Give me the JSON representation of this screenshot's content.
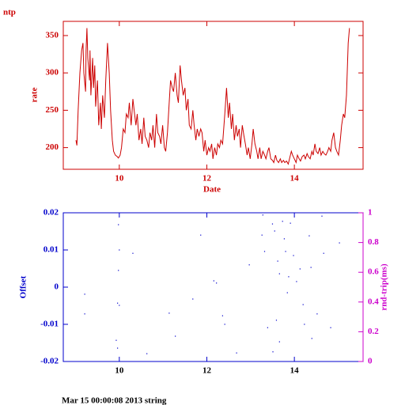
{
  "chart_data": [
    {
      "type": "line",
      "title": "ntp",
      "xlabel": "Date",
      "ylabel": "rate",
      "color": "#cc0000",
      "xlim": [
        8.72,
        15.57
      ],
      "xticks": [
        10,
        12,
        14
      ],
      "ylim": [
        171,
        369
      ],
      "yticks": [
        200,
        250,
        300,
        350
      ],
      "x": [
        9.01,
        9.03,
        9.06,
        9.1,
        9.14,
        9.17,
        9.19,
        9.23,
        9.24,
        9.26,
        9.28,
        9.32,
        9.33,
        9.35,
        9.39,
        9.41,
        9.44,
        9.46,
        9.5,
        9.53,
        9.57,
        9.59,
        9.62,
        9.66,
        9.69,
        9.73,
        9.77,
        9.8,
        9.84,
        9.87,
        9.91,
        9.95,
        9.98,
        10.02,
        10.05,
        10.09,
        10.13,
        10.16,
        10.2,
        10.23,
        10.27,
        10.31,
        10.34,
        10.38,
        10.41,
        10.45,
        10.49,
        10.52,
        10.56,
        10.59,
        10.63,
        10.67,
        10.7,
        10.74,
        10.77,
        10.81,
        10.85,
        10.88,
        10.92,
        10.95,
        10.99,
        11.03,
        11.06,
        11.1,
        11.14,
        11.17,
        11.21,
        11.24,
        11.28,
        11.32,
        11.35,
        11.39,
        11.42,
        11.46,
        11.5,
        11.53,
        11.57,
        11.6,
        11.64,
        11.68,
        11.71,
        11.75,
        11.78,
        11.82,
        11.86,
        11.89,
        11.93,
        11.96,
        12.0,
        12.04,
        12.07,
        12.11,
        12.14,
        12.18,
        12.22,
        12.25,
        12.29,
        12.32,
        12.36,
        12.41,
        12.45,
        12.49,
        12.52,
        12.56,
        12.59,
        12.63,
        12.67,
        12.7,
        12.74,
        12.77,
        12.81,
        12.85,
        12.88,
        12.92,
        12.95,
        12.99,
        13.03,
        13.06,
        13.1,
        13.14,
        13.17,
        13.21,
        13.24,
        13.28,
        13.32,
        13.35,
        13.39,
        13.42,
        13.46,
        13.5,
        13.53,
        13.57,
        13.6,
        13.64,
        13.68,
        13.71,
        13.75,
        13.78,
        13.82,
        13.86,
        13.89,
        13.93,
        13.96,
        14.0,
        14.04,
        14.07,
        14.11,
        14.14,
        14.18,
        14.22,
        14.25,
        14.29,
        14.32,
        14.36,
        14.4,
        14.43,
        14.47,
        14.5,
        14.54,
        14.58,
        14.61,
        14.65,
        14.68,
        14.72,
        14.76,
        14.79,
        14.83,
        14.86,
        14.9,
        14.94,
        14.97,
        15.01,
        15.05,
        15.08,
        15.12,
        15.15,
        15.19,
        15.23,
        15.26
      ],
      "series": [
        {
          "color": "#cc0000",
          "values": [
            210,
            203,
            250,
            300,
            330,
            340,
            300,
            275,
            330,
            360,
            320,
            290,
            330,
            270,
            320,
            280,
            310,
            255,
            290,
            230,
            260,
            225,
            270,
            240,
            290,
            340,
            300,
            250,
            210,
            195,
            190,
            188,
            186,
            190,
            200,
            225,
            220,
            245,
            240,
            260,
            230,
            265,
            250,
            230,
            245,
            210,
            225,
            205,
            240,
            215,
            210,
            200,
            220,
            210,
            230,
            200,
            245,
            220,
            215,
            205,
            230,
            200,
            195,
            220,
            260,
            290,
            280,
            275,
            300,
            270,
            260,
            310,
            290,
            270,
            280,
            250,
            265,
            230,
            225,
            250,
            230,
            210,
            225,
            215,
            225,
            220,
            195,
            210,
            190,
            200,
            195,
            205,
            185,
            200,
            190,
            205,
            200,
            210,
            205,
            245,
            280,
            240,
            260,
            225,
            245,
            210,
            230,
            215,
            225,
            200,
            230,
            215,
            205,
            190,
            200,
            185,
            205,
            225,
            205,
            195,
            185,
            200,
            185,
            195,
            190,
            185,
            195,
            200,
            185,
            183,
            180,
            190,
            183,
            180,
            185,
            180,
            183,
            180,
            182,
            178,
            185,
            195,
            190,
            185,
            180,
            190,
            185,
            182,
            188,
            190,
            185,
            192,
            188,
            185,
            195,
            190,
            205,
            195,
            192,
            200,
            190,
            195,
            192,
            190,
            195,
            200,
            195,
            210,
            220,
            200,
            195,
            190,
            210,
            230,
            245,
            240,
            270,
            340,
            360
          ]
        }
      ]
    },
    {
      "type": "scatter",
      "ylabel": "Offset",
      "y2label": "rnd-trip(ms)",
      "xlim": [
        8.72,
        15.57
      ],
      "xticks": [
        10,
        12,
        14
      ],
      "ylim": [
        -0.02,
        0.02
      ],
      "yticks": [
        -0.02,
        -0.01,
        0,
        0.01,
        0.02
      ],
      "y2lim": [
        0,
        1
      ],
      "y2ticks": [
        0,
        0.2,
        0.4,
        0.6,
        0.8,
        1
      ],
      "x": [
        9.21,
        9.21,
        9.98,
        10.0,
        9.98,
        9.96,
        10.0,
        9.93,
        9.96,
        10.31,
        11.14,
        11.28,
        11.68,
        11.86,
        12.16,
        12.22,
        12.36,
        12.41,
        12.97,
        13.28,
        13.26,
        13.32,
        13.39,
        13.5,
        13.55,
        13.62,
        13.66,
        13.73,
        13.77,
        13.8,
        13.87,
        13.59,
        13.66,
        13.91,
        13.98,
        14.05,
        14.13,
        14.2,
        14.23,
        14.34,
        14.38,
        14.4,
        14.63,
        14.67,
        14.83,
        15.03,
        13.84,
        13.51,
        12.68,
        14.52,
        10.63
      ],
      "series": [
        {
          "color": "#0000cc",
          "values": [
            -0.0019,
            -0.0072,
            0.0168,
            0.01,
            0.0045,
            -0.0043,
            -0.0049,
            -0.0143,
            -0.0164,
            0.0091,
            -0.007,
            -0.0132,
            -0.0032,
            0.014,
            0.0017,
            0.0011,
            -0.0077,
            -0.01,
            0.006,
            0.0194,
            0.014,
            0.0096,
            -0.0109,
            0.017,
            0.0151,
            0.007,
            0.0036,
            0.0177,
            0.013,
            0.0096,
            0.0028,
            -0.0089,
            -0.0147,
            0.0172,
            0.0085,
            0.0015,
            0.0049,
            -0.0047,
            -0.01,
            0.0138,
            0.0053,
            -0.0138,
            0.0191,
            0.0091,
            -0.0109,
            0.0119,
            -0.0015,
            -0.0174,
            -0.0177,
            -0.0072,
            -0.0179
          ]
        }
      ]
    }
  ],
  "footer": "Mar 15 00:00:08 2013 string"
}
